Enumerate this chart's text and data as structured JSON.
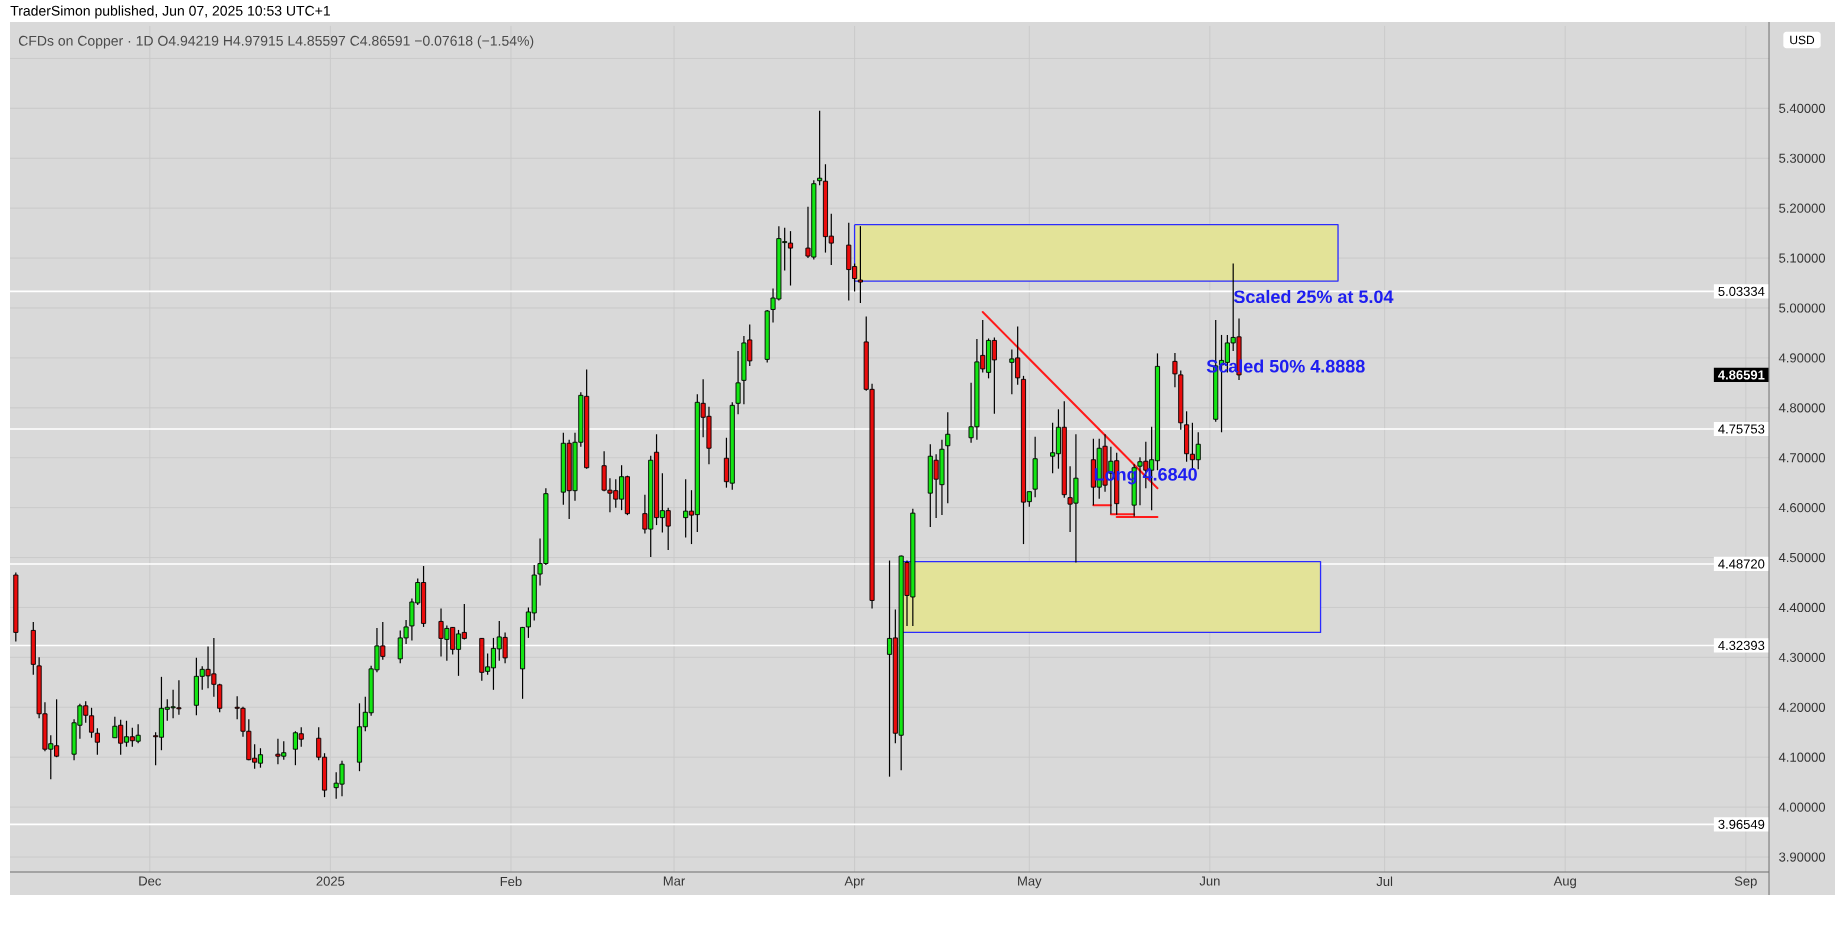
{
  "chart_data": {
    "type": "candlestick",
    "title": "CFDs on Copper · 1D O4.94219 H4.97915 L4.85597 C4.86591 −0.07618 (−1.54%)",
    "ylabel": "USD",
    "annotations": [
      "TraderSimon published, Jun 07, 2025 10:53 UTC+1",
      {
        "text": "Scaled 25% at 5.04",
        "x": "2025-06-05",
        "y": 5.023
      },
      "Scaled 50% 4.8888",
      {
        "text": "Long 4.6840",
        "x": "2025-05-12",
        "y": 4.663
      },
      "4.86591"
    ],
    "x": [
      "2024-11-08",
      "2024-11-11",
      "2024-11-12",
      "2024-11-13",
      "2024-11-14",
      "2024-11-15",
      "2024-11-18",
      "2024-11-19",
      "2024-11-20",
      "2024-11-21",
      "2024-11-22",
      "2024-11-25",
      "2024-11-26",
      "2024-11-27",
      "2024-11-28",
      "2024-11-29",
      "2024-12-02",
      "2024-12-03",
      "2024-12-04",
      "2024-12-05",
      "2024-12-06",
      "2024-12-09",
      "2024-12-10",
      "2024-12-11",
      "2024-12-12",
      "2024-12-13",
      "2024-12-16",
      "2024-12-17",
      "2024-12-18",
      "2024-12-19",
      "2024-12-20",
      "2024-12-23",
      "2024-12-24",
      "2024-12-26",
      "2024-12-27",
      "2024-12-30",
      "2024-12-31",
      "2025-01-02",
      "2025-01-03",
      "2025-01-06",
      "2025-01-07",
      "2025-01-08",
      "2025-01-09",
      "2025-01-10",
      "2025-01-13",
      "2025-01-14",
      "2025-01-15",
      "2025-01-16",
      "2025-01-17",
      "2025-01-20",
      "2025-01-21",
      "2025-01-22",
      "2025-01-23",
      "2025-01-24",
      "2025-01-27",
      "2025-01-28",
      "2025-01-29",
      "2025-01-30",
      "2025-01-31",
      "2025-02-03",
      "2025-02-04",
      "2025-02-05",
      "2025-02-06",
      "2025-02-07",
      "2025-02-10",
      "2025-02-11",
      "2025-02-12",
      "2025-02-13",
      "2025-02-14",
      "2025-02-17",
      "2025-02-18",
      "2025-02-19",
      "2025-02-20",
      "2025-02-21",
      "2025-02-24",
      "2025-02-25",
      "2025-02-26",
      "2025-02-27",
      "2025-02-28",
      "2025-03-03",
      "2025-03-04",
      "2025-03-05",
      "2025-03-06",
      "2025-03-07",
      "2025-03-10",
      "2025-03-11",
      "2025-03-12",
      "2025-03-13",
      "2025-03-14",
      "2025-03-17",
      "2025-03-18",
      "2025-03-19",
      "2025-03-20",
      "2025-03-21",
      "2025-03-24",
      "2025-03-25",
      "2025-03-26",
      "2025-03-27",
      "2025-03-28",
      "2025-03-31",
      "2025-04-01",
      "2025-04-02",
      "2025-04-03",
      "2025-04-04",
      "2025-04-07",
      "2025-04-08",
      "2025-04-09",
      "2025-04-10",
      "2025-04-11",
      "2025-04-14",
      "2025-04-15",
      "2025-04-16",
      "2025-04-17",
      "2025-04-21",
      "2025-04-22",
      "2025-04-23",
      "2025-04-24",
      "2025-04-25",
      "2025-04-28",
      "2025-04-29",
      "2025-04-30",
      "2025-05-01",
      "2025-05-02",
      "2025-05-05",
      "2025-05-06",
      "2025-05-07",
      "2025-05-08",
      "2025-05-09",
      "2025-05-12",
      "2025-05-13",
      "2025-05-14",
      "2025-05-15",
      "2025-05-16",
      "2025-05-19",
      "2025-05-20",
      "2025-05-21",
      "2025-05-22",
      "2025-05-23",
      "2025-05-26",
      "2025-05-27",
      "2025-05-28",
      "2025-05-29",
      "2025-05-30",
      "2025-06-02",
      "2025-06-03",
      "2025-06-04",
      "2025-06-05",
      "2025-06-06"
    ],
    "ohlc": [
      [
        4.465,
        4.47,
        4.332,
        4.35
      ],
      [
        4.354,
        4.371,
        4.265,
        4.286
      ],
      [
        4.283,
        4.3,
        4.178,
        4.187
      ],
      [
        4.187,
        4.21,
        4.112,
        4.116
      ],
      [
        4.116,
        4.144,
        4.056,
        4.127
      ],
      [
        4.123,
        4.216,
        4.1,
        4.102
      ],
      [
        4.106,
        4.176,
        4.094,
        4.169
      ],
      [
        4.164,
        4.207,
        4.137,
        4.203
      ],
      [
        4.203,
        4.212,
        4.169,
        4.184
      ],
      [
        4.183,
        4.199,
        4.139,
        4.15
      ],
      [
        4.148,
        4.158,
        4.105,
        4.13
      ],
      [
        4.139,
        4.181,
        4.139,
        4.162
      ],
      [
        4.164,
        4.175,
        4.105,
        4.128
      ],
      [
        4.13,
        4.173,
        4.121,
        4.141
      ],
      [
        4.141,
        4.159,
        4.121,
        4.133
      ],
      [
        4.132,
        4.166,
        4.128,
        4.144
      ],
      [
        4.143,
        4.15,
        4.084,
        4.141
      ],
      [
        4.14,
        4.261,
        4.114,
        4.198
      ],
      [
        4.196,
        4.216,
        4.173,
        4.2
      ],
      [
        4.199,
        4.235,
        4.178,
        4.201
      ],
      [
        4.199,
        4.254,
        4.185,
        4.197
      ],
      [
        4.204,
        4.299,
        4.184,
        4.262
      ],
      [
        4.262,
        4.282,
        4.235,
        4.276
      ],
      [
        4.276,
        4.322,
        4.238,
        4.263
      ],
      [
        4.267,
        4.339,
        4.221,
        4.246
      ],
      [
        4.245,
        4.247,
        4.19,
        4.198
      ],
      [
        4.2,
        4.222,
        4.176,
        4.198
      ],
      [
        4.198,
        4.201,
        4.141,
        4.152
      ],
      [
        4.152,
        4.176,
        4.094,
        4.095
      ],
      [
        4.098,
        4.126,
        4.077,
        4.09
      ],
      [
        4.088,
        4.118,
        4.079,
        4.105
      ],
      [
        4.106,
        4.137,
        4.086,
        4.102
      ],
      [
        4.102,
        4.132,
        4.095,
        4.109
      ],
      [
        4.116,
        4.152,
        4.084,
        4.149
      ],
      [
        4.147,
        4.16,
        4.121,
        4.136
      ],
      [
        4.138,
        4.16,
        4.094,
        4.1
      ],
      [
        4.1,
        4.108,
        4.02,
        4.034
      ],
      [
        4.039,
        4.07,
        4.017,
        4.048
      ],
      [
        4.046,
        4.093,
        4.022,
        4.086
      ],
      [
        4.09,
        4.208,
        4.072,
        4.161
      ],
      [
        4.161,
        4.221,
        4.152,
        4.19
      ],
      [
        4.189,
        4.283,
        4.183,
        4.277
      ],
      [
        4.275,
        4.359,
        4.27,
        4.323
      ],
      [
        4.323,
        4.371,
        4.295,
        4.302
      ],
      [
        4.297,
        4.354,
        4.288,
        4.339
      ],
      [
        4.339,
        4.375,
        4.327,
        4.361
      ],
      [
        4.363,
        4.418,
        4.334,
        4.411
      ],
      [
        4.409,
        4.458,
        4.405,
        4.45
      ],
      [
        4.45,
        4.483,
        4.361,
        4.368
      ],
      [
        4.372,
        4.398,
        4.302,
        4.338
      ],
      [
        4.336,
        4.364,
        4.293,
        4.358
      ],
      [
        4.36,
        4.361,
        4.306,
        4.316
      ],
      [
        4.316,
        4.355,
        4.263,
        4.347
      ],
      [
        4.35,
        4.407,
        4.336,
        4.338
      ],
      [
        4.338,
        4.339,
        4.253,
        4.27
      ],
      [
        4.272,
        4.308,
        4.265,
        4.281
      ],
      [
        4.279,
        4.339,
        4.235,
        4.318
      ],
      [
        4.317,
        4.373,
        4.293,
        4.341
      ],
      [
        4.34,
        4.35,
        4.288,
        4.299
      ],
      [
        4.277,
        4.361,
        4.217,
        4.36
      ],
      [
        4.361,
        4.4,
        4.339,
        4.391
      ],
      [
        4.389,
        4.485,
        4.374,
        4.465
      ],
      [
        4.467,
        4.538,
        4.444,
        4.488
      ],
      [
        4.488,
        4.639,
        4.485,
        4.628
      ],
      [
        4.631,
        4.75,
        4.606,
        4.729
      ],
      [
        4.729,
        4.736,
        4.577,
        4.634
      ],
      [
        4.634,
        4.75,
        4.614,
        4.731
      ],
      [
        4.731,
        4.831,
        4.722,
        4.825
      ],
      [
        4.823,
        4.877,
        4.678,
        4.68
      ],
      [
        4.684,
        4.713,
        4.633,
        4.635
      ],
      [
        4.635,
        4.659,
        4.591,
        4.629
      ],
      [
        4.634,
        4.657,
        4.6,
        4.617
      ],
      [
        4.617,
        4.685,
        4.595,
        4.662
      ],
      [
        4.662,
        4.664,
        4.585,
        4.588
      ],
      [
        4.588,
        4.626,
        4.548,
        4.557
      ],
      [
        4.557,
        4.704,
        4.501,
        4.695
      ],
      [
        4.711,
        4.747,
        4.565,
        4.58
      ],
      [
        4.58,
        4.669,
        4.55,
        4.594
      ],
      [
        4.594,
        4.6,
        4.515,
        4.563
      ],
      [
        4.58,
        4.657,
        4.54,
        4.593
      ],
      [
        4.593,
        4.635,
        4.527,
        4.585
      ],
      [
        4.586,
        4.827,
        4.551,
        4.811
      ],
      [
        4.809,
        4.857,
        4.741,
        4.781
      ],
      [
        4.783,
        4.802,
        4.687,
        4.719
      ],
      [
        4.699,
        4.74,
        4.64,
        4.652
      ],
      [
        4.649,
        4.811,
        4.636,
        4.805
      ],
      [
        4.809,
        4.914,
        4.787,
        4.85
      ],
      [
        4.855,
        4.944,
        4.807,
        4.93
      ],
      [
        4.936,
        4.967,
        4.884,
        4.894
      ],
      [
        4.897,
        4.996,
        4.891,
        4.994
      ],
      [
        4.997,
        5.039,
        4.971,
        5.02
      ],
      [
        5.018,
        5.164,
        5.015,
        5.139
      ],
      [
        5.131,
        5.161,
        5.075,
        5.133
      ],
      [
        5.13,
        5.154,
        5.045,
        5.12
      ],
      [
        5.12,
        5.203,
        5.1,
        5.104
      ],
      [
        5.102,
        5.256,
        5.097,
        5.249
      ],
      [
        5.255,
        5.395,
        5.246,
        5.26
      ],
      [
        5.254,
        5.288,
        5.111,
        5.143
      ],
      [
        5.144,
        5.189,
        5.086,
        5.13
      ],
      [
        5.126,
        5.171,
        5.015,
        5.077
      ],
      [
        5.083,
        5.089,
        5.033,
        5.059
      ],
      [
        5.056,
        5.164,
        5.01,
        5.052
      ],
      [
        4.932,
        4.983,
        4.834,
        4.837
      ],
      [
        4.837,
        4.848,
        4.398,
        4.414
      ],
      [
        4.306,
        4.494,
        4.061,
        4.338
      ],
      [
        4.339,
        4.396,
        4.128,
        4.148
      ],
      [
        4.144,
        4.504,
        4.074,
        4.503
      ],
      [
        4.49,
        4.494,
        4.363,
        4.424
      ],
      [
        4.421,
        4.598,
        4.363,
        4.589
      ],
      [
        4.629,
        4.727,
        4.561,
        4.703
      ],
      [
        4.695,
        4.707,
        4.579,
        4.657
      ],
      [
        4.646,
        4.736,
        4.585,
        4.717
      ],
      [
        4.724,
        4.791,
        4.609,
        4.747
      ],
      [
        4.74,
        4.85,
        4.73,
        4.762
      ],
      [
        4.762,
        4.938,
        4.736,
        4.892
      ],
      [
        4.905,
        4.976,
        4.871,
        4.878
      ],
      [
        4.871,
        4.939,
        4.859,
        4.935
      ],
      [
        4.935,
        4.941,
        4.788,
        4.896
      ],
      [
        4.891,
        4.917,
        4.827,
        4.898
      ],
      [
        4.9,
        4.963,
        4.846,
        4.86
      ],
      [
        4.857,
        4.864,
        4.527,
        4.611
      ],
      [
        4.612,
        4.632,
        4.602,
        4.632
      ],
      [
        4.637,
        4.742,
        4.621,
        4.698
      ],
      [
        4.703,
        4.77,
        4.669,
        4.71
      ],
      [
        4.708,
        4.797,
        4.678,
        4.761
      ],
      [
        4.761,
        4.813,
        4.62,
        4.626
      ],
      [
        4.62,
        4.683,
        4.551,
        4.607
      ],
      [
        4.609,
        4.747,
        4.49,
        4.659
      ],
      [
        4.696,
        4.738,
        4.605,
        4.641
      ],
      [
        4.641,
        4.738,
        4.618,
        4.719
      ],
      [
        4.723,
        4.747,
        4.632,
        4.645
      ],
      [
        4.669,
        4.722,
        4.588,
        4.693
      ],
      [
        4.694,
        4.71,
        4.586,
        4.608
      ],
      [
        4.605,
        4.687,
        4.582,
        4.68
      ],
      [
        4.683,
        4.701,
        4.605,
        4.692
      ],
      [
        4.693,
        4.732,
        4.639,
        4.675
      ],
      [
        4.675,
        4.762,
        4.595,
        4.696
      ],
      [
        4.694,
        4.909,
        4.675,
        4.883
      ],
      [
        4.893,
        4.91,
        4.841,
        4.868
      ],
      [
        4.866,
        4.875,
        4.756,
        4.77
      ],
      [
        4.766,
        4.793,
        4.692,
        4.708
      ],
      [
        4.707,
        4.77,
        4.678,
        4.696
      ],
      [
        4.696,
        4.751,
        4.677,
        4.727
      ],
      [
        4.777,
        4.976,
        4.772,
        4.884
      ],
      [
        4.886,
        4.946,
        4.751,
        4.895
      ],
      [
        4.891,
        4.946,
        4.871,
        4.93
      ],
      [
        4.93,
        5.089,
        4.914,
        4.941
      ],
      [
        4.94219,
        4.97915,
        4.85597,
        4.86591
      ]
    ],
    "colors": [
      "#eb0c0c",
      "#eb0c0c",
      "#eb0c0c",
      "#eb0c0c",
      "#14e614",
      "#eb0c0c",
      "#14e614",
      "#14e614",
      "#eb0c0c",
      "#eb0c0c",
      "#eb0c0c",
      "#14e614",
      "#eb0c0c",
      "#14e614",
      "#eb0c0c",
      "#14e614",
      "#eb0c0c",
      "#14e614",
      "#14e614",
      "#14e614",
      "#eb0c0c",
      "#14e614",
      "#14e614",
      "#eb0c0c",
      "#eb0c0c",
      "#eb0c0c",
      "#eb0c0c",
      "#eb0c0c",
      "#eb0c0c",
      "#eb0c0c",
      "#14e614",
      "#eb0c0c",
      "#14e614",
      "#14e614",
      "#eb0c0c",
      "#eb0c0c",
      "#eb0c0c",
      "#14e614",
      "#14e614",
      "#14e614",
      "#14e614",
      "#14e614",
      "#14e614",
      "#eb0c0c",
      "#14e614",
      "#14e614",
      "#14e614",
      "#14e614",
      "#eb0c0c",
      "#eb0c0c",
      "#14e614",
      "#eb0c0c",
      "#14e614",
      "#eb0c0c",
      "#eb0c0c",
      "#14e614",
      "#14e614",
      "#14e614",
      "#eb0c0c",
      "#14e614",
      "#14e614",
      "#14e614",
      "#14e614",
      "#14e614",
      "#14e614",
      "#eb0c0c",
      "#14e614",
      "#14e614",
      "#eb0c0c",
      "#eb0c0c",
      "#eb0c0c",
      "#eb0c0c",
      "#14e614",
      "#eb0c0c",
      "#eb0c0c",
      "#14e614",
      "#eb0c0c",
      "#14e614",
      "#eb0c0c",
      "#14e614",
      "#eb0c0c",
      "#14e614",
      "#eb0c0c",
      "#eb0c0c",
      "#eb0c0c",
      "#14e614",
      "#14e614",
      "#14e614",
      "#eb0c0c",
      "#14e614",
      "#14e614",
      "#14e614",
      "#14e614",
      "#eb0c0c",
      "#eb0c0c",
      "#14e614",
      "#14e614",
      "#eb0c0c",
      "#eb0c0c",
      "#eb0c0c",
      "#eb0c0c",
      "#eb0c0c",
      "#eb0c0c",
      "#eb0c0c",
      "#14e614",
      "#eb0c0c",
      "#14e614",
      "#eb0c0c",
      "#14e614",
      "#14e614",
      "#eb0c0c",
      "#14e614",
      "#14e614",
      "#14e614",
      "#14e614",
      "#eb0c0c",
      "#14e614",
      "#eb0c0c",
      "#14e614",
      "#eb0c0c",
      "#eb0c0c",
      "#14e614",
      "#14e614",
      "#14e614",
      "#14e614",
      "#eb0c0c",
      "#eb0c0c",
      "#14e614",
      "#eb0c0c",
      "#14e614",
      "#eb0c0c",
      "#14e614",
      "#eb0c0c",
      "#14e614",
      "#14e614",
      "#eb0c0c",
      "#14e614",
      "#14e614",
      "#eb0c0c",
      "#eb0c0c",
      "#eb0c0c",
      "#eb0c0c",
      "#14e614",
      "#14e614",
      "#14e614",
      "#14e614",
      "#14e614",
      "#eb0c0c"
    ],
    "series": [
      {
        "type": "line",
        "x": [
          "2025-04-01",
          "2025-06-23"
        ],
        "values": [
          null,
          null
        ],
        "lower": [
          5.054,
          5.054
        ],
        "upper": [
          5.167,
          5.167
        ],
        "color": "#e3e398"
      },
      {
        "type": "line",
        "x": [
          "2025-04-09",
          "2025-06-20"
        ],
        "values": [
          null,
          null
        ],
        "lower": [
          4.35,
          4.35
        ],
        "upper": [
          4.492,
          4.492
        ],
        "color": "#e3e398"
      },
      {
        "type": "line",
        "x": [
          "2025-04-23",
          "2025-05-23"
        ],
        "values": [
          4.992,
          4.639
        ],
        "color": "#ff1a1a"
      },
      {
        "type": "line",
        "x": [
          "2025-05-12",
          "2025-05-15"
        ],
        "values": [
          4.605,
          4.605
        ],
        "color": "#ff1a1a"
      },
      {
        "type": "line",
        "x": [
          "2025-05-15",
          "2025-05-19"
        ],
        "values": [
          4.587,
          4.587
        ],
        "color": "#ff1a1a"
      },
      {
        "type": "line",
        "x": [
          "2025-05-16",
          "2025-05-23"
        ],
        "values": [
          4.581,
          4.581
        ],
        "color": "#ff1a1a"
      }
    ],
    "ref_lines": [
      {
        "axis": "y",
        "value": 5.03334,
        "label": "5.03334",
        "color": "#ffffff"
      },
      {
        "axis": "y",
        "value": 4.75753,
        "label": "4.75753",
        "color": "#ffffff"
      },
      {
        "axis": "y",
        "value": 4.4872,
        "label": "4.48720",
        "color": "#ffffff"
      },
      {
        "axis": "y",
        "value": 4.32393,
        "label": "4.32393",
        "color": "#ffffff"
      },
      {
        "axis": "y",
        "value": 3.96549,
        "label": "3.96549",
        "color": "#ffffff"
      }
    ],
    "xlim": [
      "2024-11-07",
      "2025-09-05"
    ],
    "ylim": [
      3.87,
      5.565
    ],
    "xticks": [
      {
        "value": "2024-12-01",
        "label": "Dec"
      },
      {
        "value": "2025-01-01",
        "label": "2025"
      },
      {
        "value": "2025-02-01",
        "label": "Feb"
      },
      {
        "value": "2025-03-01",
        "label": "Mar"
      },
      {
        "value": "2025-04-01",
        "label": "Apr"
      },
      {
        "value": "2025-05-01",
        "label": "May"
      },
      {
        "value": "2025-06-01",
        "label": "Jun"
      },
      {
        "value": "2025-07-01",
        "label": "Jul"
      },
      {
        "value": "2025-08-01",
        "label": "Aug"
      },
      {
        "value": "2025-09-01",
        "label": "Sep"
      }
    ],
    "yticks": [
      {
        "value": 3.9,
        "label": "3.90000"
      },
      {
        "value": 4.0,
        "label": "4.00000"
      },
      {
        "value": 4.1,
        "label": "4.10000"
      },
      {
        "value": 4.2,
        "label": "4.20000"
      },
      {
        "value": 4.3,
        "label": "4.30000"
      },
      {
        "value": 4.4,
        "label": "4.40000"
      },
      {
        "value": 4.5,
        "label": "4.50000"
      },
      {
        "value": 4.6,
        "label": "4.60000"
      },
      {
        "value": 4.7,
        "label": "4.70000"
      },
      {
        "value": 4.8,
        "label": "4.80000"
      },
      {
        "value": 4.9,
        "label": "4.90000"
      },
      {
        "value": 5.0,
        "label": "5.00000"
      },
      {
        "value": 5.1,
        "label": "5.10000"
      },
      {
        "value": 5.2,
        "label": "5.20000"
      },
      {
        "value": 5.3,
        "label": "5.30000"
      },
      {
        "value": 5.4,
        "label": "5.40000"
      },
      {
        "value": 5.5,
        "label": null
      }
    ],
    "grid": true
  }
}
